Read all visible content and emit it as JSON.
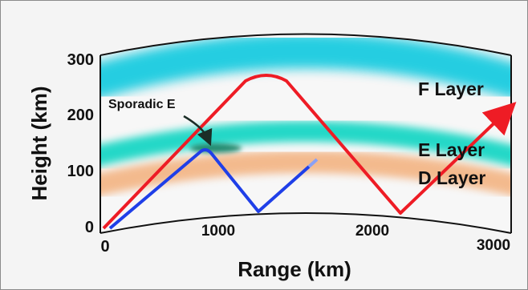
{
  "diagram": {
    "y_axis_label": "Height (km)",
    "x_axis_label": "Range (km)",
    "y_ticks": [
      "0",
      "100",
      "200",
      "300"
    ],
    "x_ticks": [
      "0",
      "1000",
      "2000",
      "3000"
    ],
    "layers": [
      {
        "name": "F Layer",
        "color": "#00c6dd"
      },
      {
        "name": "E Layer",
        "color": "#00d3bf"
      },
      {
        "name": "D Layer",
        "color": "#f2a66a"
      }
    ],
    "annotation": "Sporadic E",
    "paths": {
      "red": {
        "color": "#ee1c25",
        "description": "two-hop reflection from F layer"
      },
      "blue": {
        "color": "#1f3fe8",
        "description": "reflection from sporadic E"
      }
    }
  }
}
